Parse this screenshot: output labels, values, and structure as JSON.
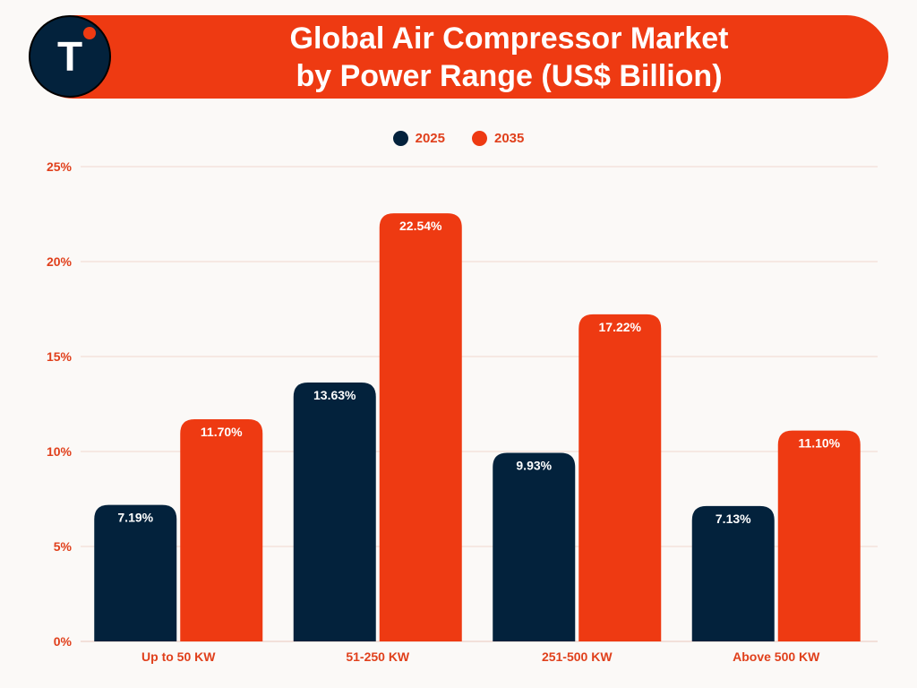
{
  "header": {
    "title_line1": "Global Air Compressor Market",
    "title_line2": "by Power Range (US$ Billion)",
    "logo_letter": "T"
  },
  "colors": {
    "banner": "#ee3a12",
    "navy": "#03223c",
    "orange": "#ee3a12",
    "axis_text": "#e0401c",
    "grid": "#f1d8cf",
    "background": "#fbf9f7"
  },
  "chart_data": {
    "type": "bar",
    "categories": [
      "Up to 50 KW",
      "51-250 KW",
      "251-500 KW",
      "Above 500 KW"
    ],
    "series": [
      {
        "name": "2025",
        "color": "#03223c",
        "values": [
          7.19,
          13.63,
          9.93,
          7.13
        ],
        "labels": [
          "7.19%",
          "13.63%",
          "9.93%",
          "7.13%"
        ]
      },
      {
        "name": "2035",
        "color": "#ee3a12",
        "values": [
          11.7,
          22.54,
          17.22,
          11.1
        ],
        "labels": [
          "11.70%",
          "22.54%",
          "17.22%",
          "11.10%"
        ]
      }
    ],
    "ylim": [
      0,
      25
    ],
    "yticks": [
      0,
      5,
      10,
      15,
      20,
      25
    ],
    "ytick_labels": [
      "0%",
      "5%",
      "10%",
      "15%",
      "20%",
      "25%"
    ],
    "grid": true,
    "legend": "top-center"
  }
}
